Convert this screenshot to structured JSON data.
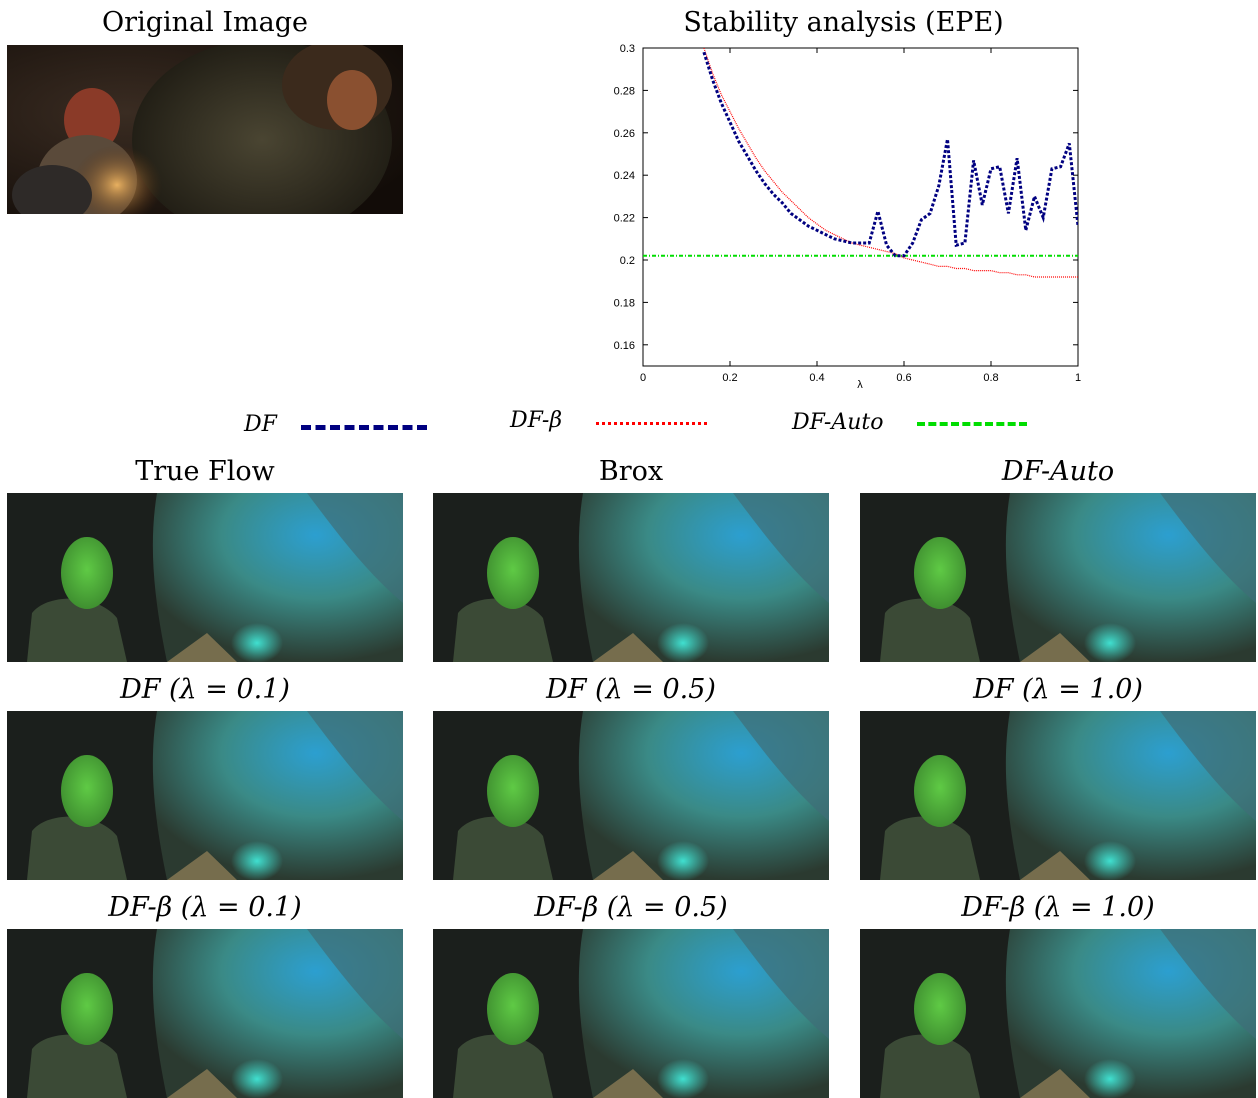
{
  "titles": {
    "original": "Original Image",
    "chart": "Stability analysis (EPE)",
    "true_flow": "True Flow",
    "brox": "Brox",
    "df_auto": "DF-Auto",
    "df_01": "DF (λ = 0.1)",
    "df_05": "DF (λ = 0.5)",
    "df_10": "DF (λ = 1.0)",
    "dfb_01": "DF-β (λ = 0.1)",
    "dfb_05": "DF-β (λ = 0.5)",
    "dfb_10": "DF-β (λ = 1.0)"
  },
  "legend": {
    "df": "DF",
    "df_beta": "DF-β",
    "df_auto": "DF-Auto"
  },
  "colors": {
    "df": "#000080",
    "df_beta": "#ff0000",
    "df_auto": "#00dd00"
  },
  "chart_data": {
    "type": "line",
    "title": "Stability analysis (EPE)",
    "xlabel": "λ",
    "ylabel": "",
    "xlim": [
      0,
      1
    ],
    "ylim": [
      0.15,
      0.3
    ],
    "xticks": [
      0,
      0.2,
      0.4,
      0.6,
      0.8,
      1
    ],
    "xtick_labels": [
      "0",
      "0.2",
      "0.4",
      "0.6",
      "0.8",
      "1"
    ],
    "yticks": [
      0.16,
      0.18,
      0.2,
      0.22,
      0.24,
      0.26,
      0.28,
      0.3
    ],
    "ytick_labels": [
      "0.16",
      "0.18",
      "0.2",
      "0.22",
      "0.24",
      "0.26",
      "0.28",
      "0.3"
    ],
    "grid": false,
    "series": [
      {
        "name": "DF",
        "x": [
          0.14,
          0.16,
          0.18,
          0.2,
          0.22,
          0.24,
          0.26,
          0.28,
          0.3,
          0.32,
          0.34,
          0.36,
          0.38,
          0.4,
          0.42,
          0.44,
          0.46,
          0.48,
          0.5,
          0.52,
          0.54,
          0.56,
          0.58,
          0.6,
          0.62,
          0.64,
          0.66,
          0.68,
          0.7,
          0.72,
          0.74,
          0.76,
          0.78,
          0.8,
          0.82,
          0.84,
          0.86,
          0.88,
          0.9,
          0.92,
          0.94,
          0.96,
          0.98,
          1.0
        ],
        "y": [
          0.298,
          0.285,
          0.274,
          0.265,
          0.256,
          0.249,
          0.242,
          0.236,
          0.231,
          0.227,
          0.222,
          0.219,
          0.216,
          0.214,
          0.212,
          0.21,
          0.209,
          0.208,
          0.208,
          0.208,
          0.223,
          0.207,
          0.202,
          0.202,
          0.208,
          0.219,
          0.222,
          0.235,
          0.257,
          0.207,
          0.208,
          0.247,
          0.226,
          0.243,
          0.244,
          0.222,
          0.248,
          0.214,
          0.23,
          0.22,
          0.243,
          0.244,
          0.255,
          0.216
        ]
      },
      {
        "name": "DF-β",
        "x": [
          0.14,
          0.16,
          0.18,
          0.2,
          0.22,
          0.24,
          0.26,
          0.28,
          0.3,
          0.32,
          0.34,
          0.36,
          0.38,
          0.4,
          0.42,
          0.44,
          0.46,
          0.48,
          0.5,
          0.52,
          0.54,
          0.56,
          0.58,
          0.6,
          0.62,
          0.64,
          0.66,
          0.68,
          0.7,
          0.72,
          0.74,
          0.76,
          0.78,
          0.8,
          0.82,
          0.84,
          0.86,
          0.88,
          0.9,
          0.92,
          0.94,
          0.96,
          0.98,
          1.0
        ],
        "y": [
          0.3,
          0.288,
          0.278,
          0.27,
          0.262,
          0.255,
          0.248,
          0.242,
          0.237,
          0.232,
          0.228,
          0.224,
          0.22,
          0.217,
          0.214,
          0.212,
          0.21,
          0.208,
          0.207,
          0.206,
          0.205,
          0.204,
          0.203,
          0.201,
          0.2,
          0.199,
          0.198,
          0.197,
          0.197,
          0.196,
          0.196,
          0.195,
          0.195,
          0.195,
          0.194,
          0.194,
          0.193,
          0.193,
          0.192,
          0.192,
          0.192,
          0.192,
          0.192,
          0.192
        ]
      },
      {
        "name": "DF-Auto",
        "x": [
          0,
          1
        ],
        "y": [
          0.202,
          0.202
        ]
      }
    ]
  }
}
